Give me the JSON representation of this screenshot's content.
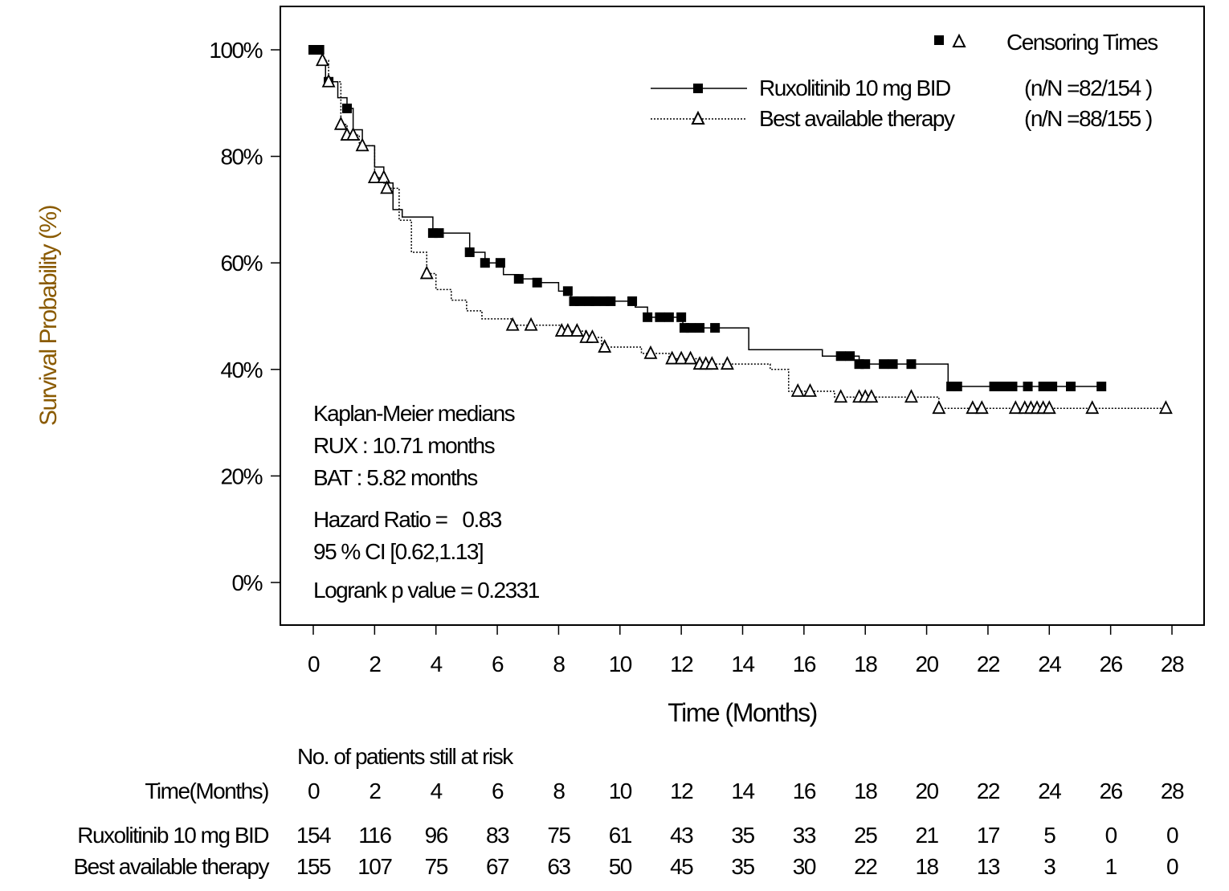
{
  "chart_data": {
    "type": "line",
    "subtype": "kaplan-meier",
    "xlabel": "Time (Months)",
    "ylabel": "Survival Probability (%)",
    "xlim": [
      0,
      28
    ],
    "ylim": [
      0,
      100
    ],
    "xticks": [
      0,
      2,
      4,
      6,
      8,
      10,
      12,
      14,
      16,
      18,
      20,
      22,
      24,
      26,
      28
    ],
    "yticks": [
      0,
      20,
      40,
      60,
      80,
      100
    ],
    "ytick_labels": [
      "0%",
      "20%",
      "40%",
      "60%",
      "80%",
      "100%"
    ],
    "grid": false,
    "legend": {
      "placement": "top-right",
      "censor_title": "Censoring Times",
      "entries": [
        {
          "name": "Ruxolitinib 10 mg BID",
          "count": "(n/N =82/154  )",
          "marker": "filled-square",
          "line": "solid"
        },
        {
          "name": "Best available therapy",
          "count": "(n/N =88/155  )",
          "marker": "open-triangle",
          "line": "dotted"
        }
      ]
    },
    "series": [
      {
        "name": "Ruxolitinib 10 mg BID",
        "steps": [
          [
            0,
            100
          ],
          [
            0.3,
            98
          ],
          [
            0.4,
            94
          ],
          [
            0.8,
            91
          ],
          [
            1.1,
            89
          ],
          [
            1.3,
            85
          ],
          [
            1.6,
            82
          ],
          [
            2.0,
            78
          ],
          [
            2.3,
            75
          ],
          [
            2.6,
            70
          ],
          [
            2.9,
            68.6
          ],
          [
            3.9,
            65.6
          ],
          [
            5.1,
            62
          ],
          [
            5.6,
            60
          ],
          [
            6.2,
            57.8
          ],
          [
            6.7,
            57
          ],
          [
            7.3,
            56.3
          ],
          [
            8.0,
            54.7
          ],
          [
            8.4,
            52.8
          ],
          [
            10.5,
            51.7
          ],
          [
            10.9,
            49.8
          ],
          [
            12.05,
            47.8
          ],
          [
            14.2,
            43.7
          ],
          [
            16.6,
            42.5
          ],
          [
            17.8,
            41
          ],
          [
            20.7,
            36.8
          ]
        ],
        "end": 25.7,
        "censored": [
          0,
          0.1,
          0.2,
          0.5,
          1.1,
          3.9,
          4.1,
          5.1,
          5.6,
          6.1,
          6.7,
          7.3,
          8.3,
          8.5,
          8.7,
          9.0,
          9.2,
          9.5,
          9.7,
          10.4,
          10.9,
          11.3,
          11.6,
          12.0,
          12.1,
          12.3,
          12.6,
          13.1,
          17.2,
          17.5,
          17.8,
          18.0,
          18.6,
          18.9,
          19.5,
          20.8,
          21.0,
          22.2,
          22.5,
          22.8,
          23.3,
          23.8,
          24.1,
          24.7,
          25.7
        ]
      },
      {
        "name": "Best available therapy",
        "steps": [
          [
            0,
            100
          ],
          [
            0.3,
            98
          ],
          [
            0.5,
            94
          ],
          [
            0.9,
            86
          ],
          [
            1.1,
            84
          ],
          [
            1.5,
            82
          ],
          [
            2.0,
            76
          ],
          [
            2.4,
            74
          ],
          [
            2.8,
            68
          ],
          [
            3.2,
            62
          ],
          [
            3.7,
            58
          ],
          [
            4.0,
            55
          ],
          [
            4.5,
            53
          ],
          [
            5.0,
            51
          ],
          [
            5.5,
            49.5
          ],
          [
            6.5,
            48.3
          ],
          [
            8.1,
            47.2
          ],
          [
            8.9,
            46
          ],
          [
            9.4,
            44.2
          ],
          [
            10.7,
            43
          ],
          [
            11.6,
            42
          ],
          [
            12.6,
            41
          ],
          [
            14.9,
            40
          ],
          [
            15.5,
            35.9
          ],
          [
            17.0,
            34.8
          ],
          [
            20.4,
            32.7
          ]
        ],
        "end": 27.8,
        "censored": [
          0.3,
          0.5,
          0.9,
          1.1,
          1.3,
          1.6,
          2.0,
          2.3,
          2.4,
          3.7,
          6.5,
          7.1,
          8.1,
          8.3,
          8.6,
          8.9,
          9.1,
          9.5,
          11.0,
          11.7,
          12.0,
          12.3,
          12.6,
          12.8,
          13.0,
          13.5,
          15.8,
          16.2,
          17.2,
          17.8,
          18.0,
          18.2,
          19.5,
          20.4,
          21.5,
          21.8,
          22.9,
          23.2,
          23.4,
          23.6,
          23.8,
          24.0,
          25.4,
          27.8
        ]
      }
    ],
    "annotations": [
      "Kaplan-Meier medians",
      "RUX : 10.71 months",
      "BAT : 5.82 months",
      "Hazard Ratio =   0.83",
      "95 % CI [0.62,1.13]",
      "Logrank p value = 0.2331"
    ],
    "risk_table": {
      "title": "No. of patients still at risk",
      "header_label": "Time(Months)",
      "times": [
        "0",
        "2",
        "4",
        "6",
        "8",
        "10",
        "12",
        "14",
        "16",
        "18",
        "20",
        "22",
        "24",
        "26",
        "28"
      ],
      "rows": [
        {
          "label": "Ruxolitinib 10 mg BID",
          "values": [
            "154",
            "116",
            "96",
            "83",
            "75",
            "61",
            "43",
            "35",
            "33",
            "25",
            "21",
            "17",
            "5",
            "0",
            "0"
          ]
        },
        {
          "label": "Best available therapy",
          "values": [
            "155",
            "107",
            "75",
            "67",
            "63",
            "50",
            "45",
            "35",
            "30",
            "22",
            "18",
            "13",
            "3",
            "1",
            "0"
          ]
        }
      ]
    }
  }
}
